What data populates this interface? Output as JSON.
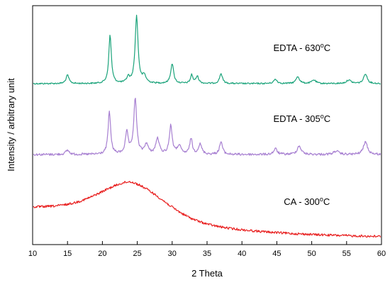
{
  "chart_data": {
    "type": "line",
    "title": "",
    "xlabel": "2 Theta",
    "ylabel": "Intensity / arbitrary unit",
    "xlim": [
      10,
      60
    ],
    "x_ticks": [
      "10",
      "15",
      "20",
      "25",
      "30",
      "35",
      "40",
      "45",
      "50",
      "55",
      "60"
    ],
    "y_scale": "arbitrary (offset traces, no tick labels)",
    "grid": false,
    "legend": "none (inline labels next to traces)",
    "series": [
      {
        "name": "EDTA - 630",
        "name_superscript": "o",
        "name_suffix": "C",
        "color": "#1aa37a",
        "baseline": 118,
        "noise": 1.0,
        "peaks": [
          {
            "x": 15.0,
            "h": 12,
            "w": 0.25
          },
          {
            "x": 21.1,
            "h": 68,
            "w": 0.22
          },
          {
            "x": 23.7,
            "h": 8,
            "w": 0.25
          },
          {
            "x": 24.9,
            "h": 95,
            "w": 0.25
          },
          {
            "x": 26.0,
            "h": 10,
            "w": 0.3
          },
          {
            "x": 30.0,
            "h": 28,
            "w": 0.25
          },
          {
            "x": 32.8,
            "h": 12,
            "w": 0.2
          },
          {
            "x": 33.6,
            "h": 10,
            "w": 0.25
          },
          {
            "x": 37.0,
            "h": 14,
            "w": 0.25
          },
          {
            "x": 44.8,
            "h": 6,
            "w": 0.3
          },
          {
            "x": 48.0,
            "h": 10,
            "w": 0.3
          },
          {
            "x": 50.3,
            "h": 5,
            "w": 0.35
          },
          {
            "x": 55.3,
            "h": 5,
            "w": 0.4
          },
          {
            "x": 57.7,
            "h": 14,
            "w": 0.3
          }
        ]
      },
      {
        "name": "EDTA - 305",
        "name_superscript": "o",
        "name_suffix": "C",
        "color": "#a77fd1",
        "baseline": 218,
        "noise": 1.6,
        "peaks": [
          {
            "x": 15.0,
            "h": 6,
            "w": 0.3
          },
          {
            "x": 21.0,
            "h": 60,
            "w": 0.22
          },
          {
            "x": 23.5,
            "h": 30,
            "w": 0.25
          },
          {
            "x": 24.7,
            "h": 78,
            "w": 0.25
          },
          {
            "x": 26.3,
            "h": 14,
            "w": 0.3
          },
          {
            "x": 27.9,
            "h": 22,
            "w": 0.3
          },
          {
            "x": 29.8,
            "h": 40,
            "w": 0.25
          },
          {
            "x": 31.0,
            "h": 12,
            "w": 0.3
          },
          {
            "x": 32.7,
            "h": 22,
            "w": 0.22
          },
          {
            "x": 34.0,
            "h": 14,
            "w": 0.3
          },
          {
            "x": 37.0,
            "h": 18,
            "w": 0.25
          },
          {
            "x": 44.8,
            "h": 8,
            "w": 0.3
          },
          {
            "x": 48.2,
            "h": 12,
            "w": 0.35
          },
          {
            "x": 53.5,
            "h": 5,
            "w": 0.4
          },
          {
            "x": 57.7,
            "h": 18,
            "w": 0.35
          }
        ],
        "slope": -0.15
      },
      {
        "name": "CA - 300",
        "name_superscript": "o",
        "name_suffix": "C",
        "color": "#e81f1f",
        "baseline": 292,
        "noise": 1.6,
        "amorphous": [
          {
            "x": 24.5,
            "h": 36,
            "w": 4.5
          }
        ],
        "drop": 46
      }
    ],
    "labels": [
      {
        "series": 0,
        "x": 44.5,
        "y": 72
      },
      {
        "series": 1,
        "x": 44.5,
        "y": 172
      },
      {
        "series": 2,
        "x": 46.0,
        "y": 289
      }
    ]
  }
}
